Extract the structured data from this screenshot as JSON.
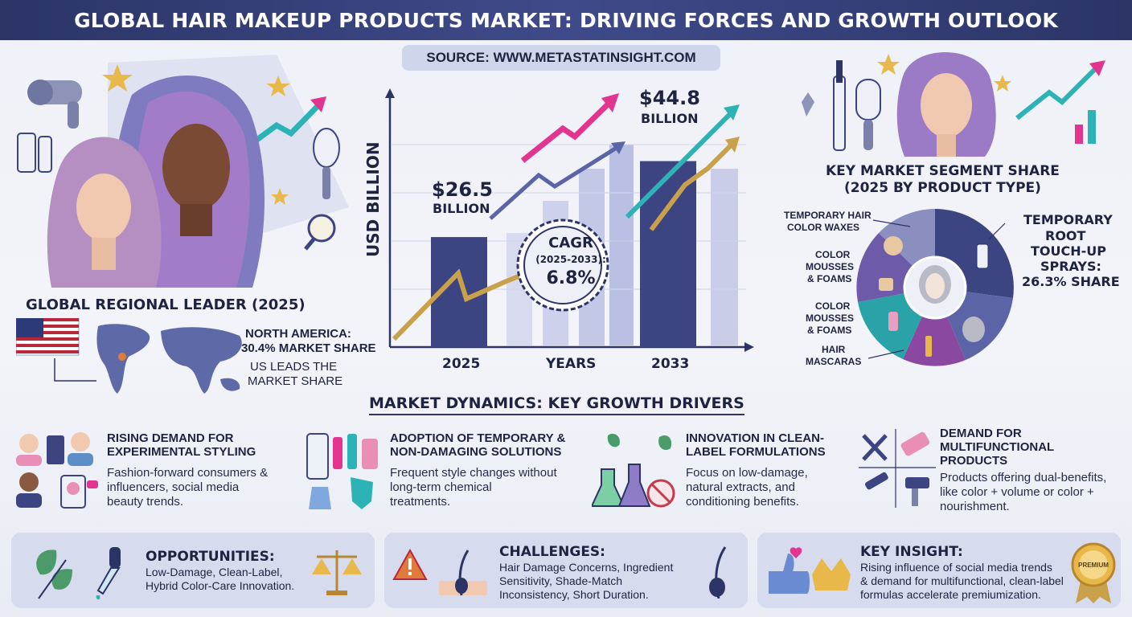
{
  "header": {
    "title": "GLOBAL HAIR MAKEUP PRODUCTS MARKET: DRIVING FORCES AND GROWTH OUTLOOK",
    "source": "SOURCE: WWW.METASTATINSIGHT.COM"
  },
  "colors": {
    "navy": "#2c3466",
    "bar_dark": "#3c4482",
    "bar_light": "#c9cde8",
    "gold": "#c9a14a",
    "pink": "#e2358f",
    "teal": "#2bb3b6",
    "purple_slice": "#6d5aa8",
    "teal_slice": "#2aa3a8"
  },
  "chart_data": {
    "type": "bar",
    "categories": [
      "2025",
      "2033"
    ],
    "values": [
      26.5,
      44.8
    ],
    "ylabel": "USD BILLION",
    "xlabel": "YEARS",
    "bar_labels": [
      {
        "value": "$26.5",
        "unit": "BILLION"
      },
      {
        "value": "$44.8",
        "unit": "BILLION"
      }
    ],
    "cagr": {
      "label": "CAGR",
      "period": "(2025-2033):",
      "value": "6.8%"
    }
  },
  "regional": {
    "title": "GLOBAL REGIONAL LEADER (2025)",
    "region_line1": "NORTH AMERICA:",
    "region_line2": "30.4% MARKET SHARE",
    "note_line1": "US LEADS THE",
    "note_line2": "MARKET SHARE"
  },
  "segment": {
    "title_line1": "KEY MARKET SEGMENT SHARE",
    "title_line2": "(2025 BY PRODUCT TYPE)",
    "labels": [
      {
        "line1": "TEMPORARY HAIR",
        "line2": "COLOR WAXES"
      },
      {
        "line1": "COLOR",
        "line2": "MOUSSES",
        "line3": "& FOAMS"
      },
      {
        "line1": "COLOR",
        "line2": "MOUSSES",
        "line3": "& FOAMS"
      },
      {
        "line1": "HAIR",
        "line2": "MASCARAS"
      }
    ],
    "highlight": {
      "line1": "TEMPORARY",
      "line2": "ROOT",
      "line3": "TOUCH-UP",
      "line4": "SPRAYS:",
      "line5": "26.3% SHARE"
    },
    "highlight_share": 26.3
  },
  "dynamics": {
    "title": "MARKET DYNAMICS: KEY GROWTH DRIVERS",
    "drivers": [
      {
        "title_line1": "RISING DEMAND FOR",
        "title_line2": "EXPERIMENTAL STYLING",
        "desc_line1": "Fashion-forward consumers &",
        "desc_line2": "influencers, social media",
        "desc_line3": "beauty trends."
      },
      {
        "title_line1": "ADOPTION OF TEMPORARY &",
        "title_line2": "NON-DAMAGING SOLUTIONS",
        "desc_line1": "Frequent style changes without",
        "desc_line2": "long-term chemical",
        "desc_line3": "treatments."
      },
      {
        "title_line1": "INNOVATION IN CLEAN-",
        "title_line2": "LABEL FORMULATIONS",
        "desc_line1": "Focus on low-damage,",
        "desc_line2": "natural extracts, and",
        "desc_line3": "conditioning benefits."
      },
      {
        "title_line1": "DEMAND FOR",
        "title_line2": "MULTIFUNCTIONAL",
        "title_line3": "PRODUCTS",
        "desc_line1": "Products offering dual-benefits,",
        "desc_line2": "like color + volume or color +",
        "desc_line3": "nourishment."
      }
    ]
  },
  "panels": {
    "opportunities": {
      "title": "OPPORTUNITIES:",
      "line1": "Low-Damage, Clean-Label,",
      "line2": "Hybrid Color-Care Innovation."
    },
    "challenges": {
      "title": "CHALLENGES:",
      "line1": "Hair Damage Concerns, Ingredient",
      "line2": "Sensitivity, Shade-Match",
      "line3": "Inconsistency, Short Duration."
    },
    "insight": {
      "title": "KEY INSIGHT:",
      "line1": "Rising influence of social media trends",
      "line2": "& demand for multifunctional, clean-label",
      "line3": "formulas accelerate premiumization.",
      "badge": "PREMIUM"
    }
  }
}
